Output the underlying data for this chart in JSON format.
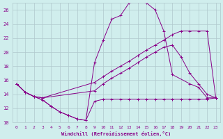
{
  "bg_color": "#d0eeed",
  "grid_color": "#b0c8cc",
  "line_color": "#880088",
  "xlabel": "Windchill (Refroidissement éolien,°C)",
  "xlim": [
    -0.5,
    23.5
  ],
  "ylim": [
    10,
    27
  ],
  "yticks": [
    10,
    12,
    14,
    16,
    18,
    20,
    22,
    24,
    26
  ],
  "xticks": [
    0,
    1,
    2,
    3,
    4,
    5,
    6,
    7,
    8,
    9,
    10,
    11,
    12,
    13,
    14,
    15,
    16,
    17,
    18,
    19,
    20,
    21,
    22,
    23
  ],
  "lines": [
    {
      "x": [
        0,
        1,
        2,
        3,
        4,
        5,
        6,
        7,
        8,
        9,
        10,
        11,
        12,
        13,
        14,
        15,
        16,
        17,
        18,
        19,
        20,
        21,
        22,
        23
      ],
      "y": [
        15.5,
        14.3,
        13.7,
        13.2,
        12.3,
        11.5,
        11.0,
        10.5,
        10.3,
        13.0,
        13.3,
        13.3,
        13.3,
        13.3,
        13.3,
        13.3,
        13.3,
        13.3,
        13.3,
        13.3,
        13.3,
        13.3,
        13.3,
        13.5
      ]
    },
    {
      "x": [
        0,
        1,
        2,
        3,
        4,
        5,
        6,
        7,
        8,
        9,
        10,
        11,
        12,
        13,
        14,
        15,
        16,
        17,
        18,
        20,
        21,
        22,
        23
      ],
      "y": [
        15.5,
        14.3,
        13.7,
        13.2,
        12.3,
        11.5,
        11.0,
        10.5,
        10.3,
        18.5,
        21.7,
        24.7,
        25.2,
        27.0,
        27.2,
        27.0,
        26.0,
        23.0,
        16.8,
        15.5,
        15.0,
        13.5,
        13.5
      ]
    },
    {
      "x": [
        0,
        1,
        2,
        3,
        9,
        10,
        11,
        12,
        13,
        14,
        15,
        16,
        17,
        18,
        19,
        20,
        21,
        22,
        23
      ],
      "y": [
        15.5,
        14.3,
        13.7,
        13.5,
        15.7,
        16.5,
        17.3,
        18.0,
        18.7,
        19.5,
        20.3,
        21.0,
        21.7,
        22.5,
        23.0,
        23.0,
        23.0,
        23.0,
        13.5
      ]
    },
    {
      "x": [
        0,
        1,
        2,
        3,
        9,
        10,
        11,
        12,
        13,
        14,
        15,
        16,
        17,
        18,
        19,
        20,
        21,
        22,
        23
      ],
      "y": [
        15.5,
        14.3,
        13.7,
        13.5,
        14.5,
        15.5,
        16.3,
        17.0,
        17.7,
        18.5,
        19.3,
        20.0,
        20.7,
        21.0,
        19.3,
        17.0,
        15.5,
        14.0,
        13.5
      ]
    }
  ]
}
